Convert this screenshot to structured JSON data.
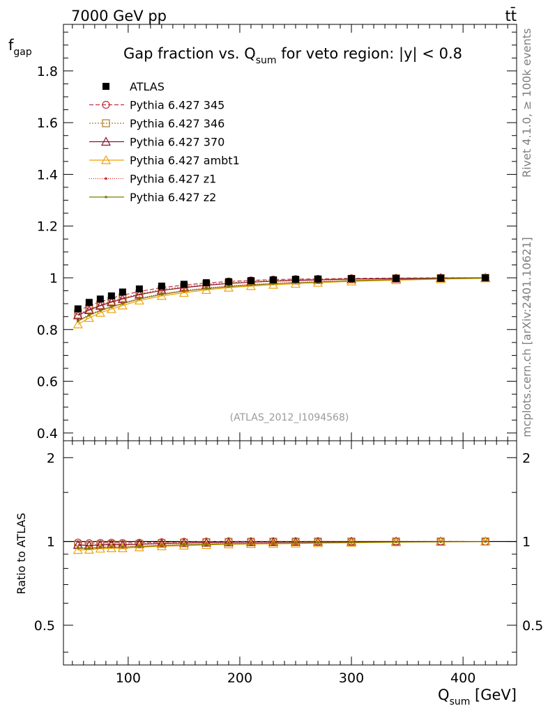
{
  "header": {
    "left": "7000 GeV pp",
    "right": "tt̄"
  },
  "side": {
    "rivet": "Rivet 4.1.0, ≥ 100k events",
    "mcplots": "mcplots.cern.ch [arXiv:2401.10621]"
  },
  "ratio_ylabel": "Ratio to ATLAS",
  "chart_data": {
    "type": "line",
    "title_parts": {
      "pre": "Gap fraction vs. Q",
      "sub": "sum",
      "post": " for veto region: |y| < 0.8"
    },
    "ylabel": {
      "main": "f",
      "sub": "gap"
    },
    "xlabel": {
      "main": "Q",
      "sub": "sum",
      "unit": " [GeV]"
    },
    "watermark": "(ATLAS_2012_I1094568)",
    "xlim": [
      42,
      448
    ],
    "ylim": [
      0.37,
      1.98
    ],
    "ratio_ylim": [
      0.36,
      2.3
    ],
    "x_ticks": [
      "100",
      "200",
      "300",
      "400"
    ],
    "y_ticks": [
      "0.4",
      "0.6",
      "0.8",
      "1",
      "1.2",
      "1.4",
      "1.6",
      "1.8"
    ],
    "ratio_ticks": [
      "0.5",
      "1",
      "2"
    ],
    "x": [
      55,
      65,
      75,
      85,
      95,
      110,
      130,
      150,
      170,
      190,
      210,
      230,
      250,
      270,
      300,
      340,
      380,
      420
    ],
    "data": {
      "name": "ATLAS",
      "color": "#000000",
      "values": [
        0.88,
        0.905,
        0.918,
        0.93,
        0.945,
        0.957,
        0.968,
        0.975,
        0.981,
        0.985,
        0.989,
        0.992,
        0.994,
        0.995,
        0.997,
        0.998,
        0.999,
        1.0
      ],
      "errors": [
        0.01,
        0.008,
        0.007,
        0.006,
        0.005,
        0.004,
        0.004,
        0.003,
        0.003,
        0.003,
        0.002,
        0.002,
        0.002,
        0.002,
        0.002,
        0.001,
        0.001,
        0.001
      ]
    },
    "series": [
      {
        "name": "Pythia 6.427 345",
        "color": "#c03040",
        "dash": "6,3",
        "marker": "circle-open",
        "values": [
          0.872,
          0.892,
          0.907,
          0.921,
          0.933,
          0.947,
          0.962,
          0.972,
          0.98,
          0.986,
          0.99,
          0.993,
          0.995,
          0.996,
          0.998,
          0.999,
          1.0,
          1.0
        ]
      },
      {
        "name": "Pythia 6.427 346",
        "color": "#b07820",
        "dash": "2,2",
        "marker": "square-open",
        "values": [
          0.858,
          0.878,
          0.895,
          0.909,
          0.922,
          0.938,
          0.955,
          0.966,
          0.975,
          0.981,
          0.986,
          0.99,
          0.992,
          0.994,
          0.996,
          0.998,
          0.999,
          1.0
        ]
      },
      {
        "name": "Pythia 6.427 370",
        "color": "#8b1030",
        "dash": "",
        "marker": "triangle-open",
        "values": [
          0.855,
          0.875,
          0.892,
          0.906,
          0.918,
          0.935,
          0.951,
          0.962,
          0.971,
          0.978,
          0.983,
          0.987,
          0.99,
          0.992,
          0.995,
          0.997,
          0.999,
          1.0
        ]
      },
      {
        "name": "Pythia 6.427 ambt1",
        "color": "#f0a000",
        "dash": "",
        "marker": "triangle-open",
        "values": [
          0.82,
          0.845,
          0.865,
          0.879,
          0.893,
          0.912,
          0.93,
          0.942,
          0.953,
          0.962,
          0.968,
          0.973,
          0.977,
          0.981,
          0.986,
          0.991,
          0.995,
          0.998
        ]
      },
      {
        "name": "Pythia 6.427 z1",
        "color": "#d02020",
        "dash": "1,2",
        "marker": "dot",
        "values": [
          0.836,
          0.858,
          0.876,
          0.89,
          0.903,
          0.921,
          0.939,
          0.951,
          0.961,
          0.969,
          0.975,
          0.979,
          0.983,
          0.986,
          0.99,
          0.994,
          0.997,
          0.999
        ]
      },
      {
        "name": "Pythia 6.427 z2",
        "color": "#7a7a00",
        "dash": "",
        "marker": "dot",
        "values": [
          0.832,
          0.855,
          0.873,
          0.887,
          0.9,
          0.918,
          0.936,
          0.948,
          0.958,
          0.966,
          0.972,
          0.977,
          0.981,
          0.984,
          0.989,
          0.993,
          0.997,
          0.999
        ]
      }
    ]
  }
}
